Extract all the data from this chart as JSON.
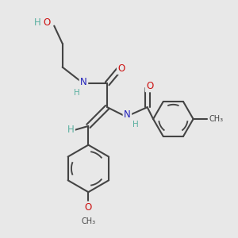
{
  "bg_color": "#e8e8e8",
  "bond_color": "#444444",
  "bond_width": 1.5,
  "atom_colors": {
    "C": "#444444",
    "H": "#5ab0a0",
    "N": "#2222bb",
    "O": "#cc1111"
  },
  "font_size": 8.5,
  "fig_size": [
    3.0,
    3.0
  ],
  "dpi": 100,
  "xlim": [
    0,
    10
  ],
  "ylim": [
    0,
    10
  ]
}
